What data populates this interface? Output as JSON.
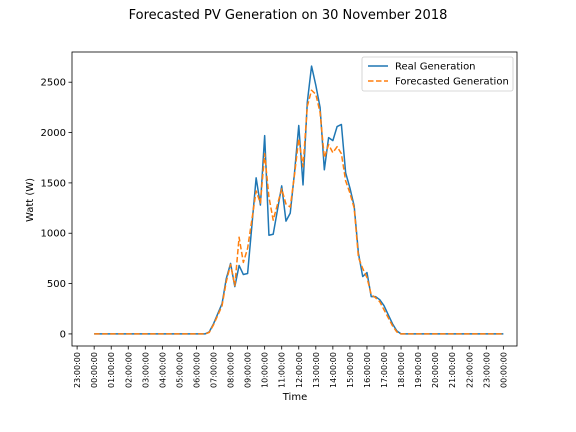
{
  "chart_data": {
    "type": "line",
    "title": "Forecasted PV Generation on 30 November 2018",
    "xlabel": "Time",
    "ylabel": "Watt (W)",
    "x_tick_labels": [
      "23:00:00",
      "00:00:00",
      "01:00:00",
      "02:00:00",
      "03:00:00",
      "04:00:00",
      "05:00:00",
      "06:00:00",
      "07:00:00",
      "08:00:00",
      "09:00:00",
      "10:00:00",
      "11:00:00",
      "12:00:00",
      "13:00:00",
      "14:00:00",
      "15:00:00",
      "16:00:00",
      "17:00:00",
      "18:00:00",
      "19:00:00",
      "20:00:00",
      "21:00:00",
      "22:00:00",
      "23:00:00",
      "00:00:00"
    ],
    "x_tick_hours": [
      -1,
      0,
      1,
      2,
      3,
      4,
      5,
      6,
      7,
      8,
      9,
      10,
      11,
      12,
      13,
      14,
      15,
      16,
      17,
      18,
      19,
      20,
      21,
      22,
      23,
      24
    ],
    "xlim": [
      -1.3,
      24.8
    ],
    "y_ticks": [
      0,
      500,
      1000,
      1500,
      2000,
      2500
    ],
    "ylim": [
      -120,
      2800
    ],
    "grid": false,
    "legend_position": "top-right",
    "series": [
      {
        "name": "Real Generation",
        "color": "#1f77b4",
        "style": "solid",
        "points": [
          [
            0,
            0
          ],
          [
            1,
            0
          ],
          [
            2,
            0
          ],
          [
            3,
            0
          ],
          [
            4,
            0
          ],
          [
            5,
            0
          ],
          [
            6,
            0
          ],
          [
            6.5,
            0
          ],
          [
            6.75,
            20
          ],
          [
            7,
            100
          ],
          [
            7.5,
            300
          ],
          [
            7.75,
            550
          ],
          [
            8,
            700
          ],
          [
            8.25,
            470
          ],
          [
            8.5,
            680
          ],
          [
            8.75,
            590
          ],
          [
            9,
            600
          ],
          [
            9.5,
            1550
          ],
          [
            9.75,
            1280
          ],
          [
            10,
            1970
          ],
          [
            10.25,
            980
          ],
          [
            10.5,
            990
          ],
          [
            11,
            1470
          ],
          [
            11.25,
            1120
          ],
          [
            11.5,
            1200
          ],
          [
            11.75,
            1600
          ],
          [
            12,
            2070
          ],
          [
            12.25,
            1480
          ],
          [
            12.5,
            2300
          ],
          [
            12.75,
            2660
          ],
          [
            13,
            2470
          ],
          [
            13.25,
            2250
          ],
          [
            13.5,
            1630
          ],
          [
            13.75,
            1950
          ],
          [
            14,
            1920
          ],
          [
            14.25,
            2060
          ],
          [
            14.5,
            2080
          ],
          [
            14.75,
            1600
          ],
          [
            15,
            1450
          ],
          [
            15.25,
            1270
          ],
          [
            15.5,
            800
          ],
          [
            15.75,
            570
          ],
          [
            16,
            610
          ],
          [
            16.25,
            370
          ],
          [
            16.5,
            370
          ],
          [
            16.75,
            340
          ],
          [
            17,
            280
          ],
          [
            17.25,
            190
          ],
          [
            17.5,
            100
          ],
          [
            17.75,
            30
          ],
          [
            18,
            0
          ],
          [
            19,
            0
          ],
          [
            20,
            0
          ],
          [
            21,
            0
          ],
          [
            22,
            0
          ],
          [
            23,
            0
          ],
          [
            24,
            0
          ]
        ]
      },
      {
        "name": "Forecasted Generation",
        "color": "#ff7f0e",
        "style": "dashed",
        "points": [
          [
            0,
            0
          ],
          [
            1,
            0
          ],
          [
            2,
            0
          ],
          [
            3,
            0
          ],
          [
            4,
            0
          ],
          [
            5,
            0
          ],
          [
            6,
            0
          ],
          [
            6.5,
            0
          ],
          [
            6.75,
            15
          ],
          [
            7,
            90
          ],
          [
            7.5,
            280
          ],
          [
            7.75,
            520
          ],
          [
            8,
            690
          ],
          [
            8.25,
            480
          ],
          [
            8.5,
            960
          ],
          [
            8.75,
            710
          ],
          [
            9,
            850
          ],
          [
            9.5,
            1420
          ],
          [
            9.75,
            1300
          ],
          [
            10,
            1790
          ],
          [
            10.25,
            1360
          ],
          [
            10.5,
            1130
          ],
          [
            11,
            1440
          ],
          [
            11.25,
            1290
          ],
          [
            11.5,
            1260
          ],
          [
            11.75,
            1580
          ],
          [
            12,
            1940
          ],
          [
            12.25,
            1660
          ],
          [
            12.5,
            2260
          ],
          [
            12.75,
            2420
          ],
          [
            13,
            2380
          ],
          [
            13.25,
            2200
          ],
          [
            13.5,
            1750
          ],
          [
            13.75,
            1880
          ],
          [
            14,
            1800
          ],
          [
            14.25,
            1860
          ],
          [
            14.5,
            1790
          ],
          [
            14.75,
            1520
          ],
          [
            15,
            1400
          ],
          [
            15.25,
            1250
          ],
          [
            15.5,
            760
          ],
          [
            15.75,
            650
          ],
          [
            16,
            560
          ],
          [
            16.25,
            390
          ],
          [
            16.5,
            360
          ],
          [
            16.75,
            320
          ],
          [
            17,
            240
          ],
          [
            17.25,
            160
          ],
          [
            17.5,
            80
          ],
          [
            17.75,
            20
          ],
          [
            18,
            0
          ],
          [
            19,
            0
          ],
          [
            20,
            0
          ],
          [
            21,
            0
          ],
          [
            22,
            0
          ],
          [
            23,
            0
          ],
          [
            24,
            0
          ]
        ]
      }
    ]
  }
}
